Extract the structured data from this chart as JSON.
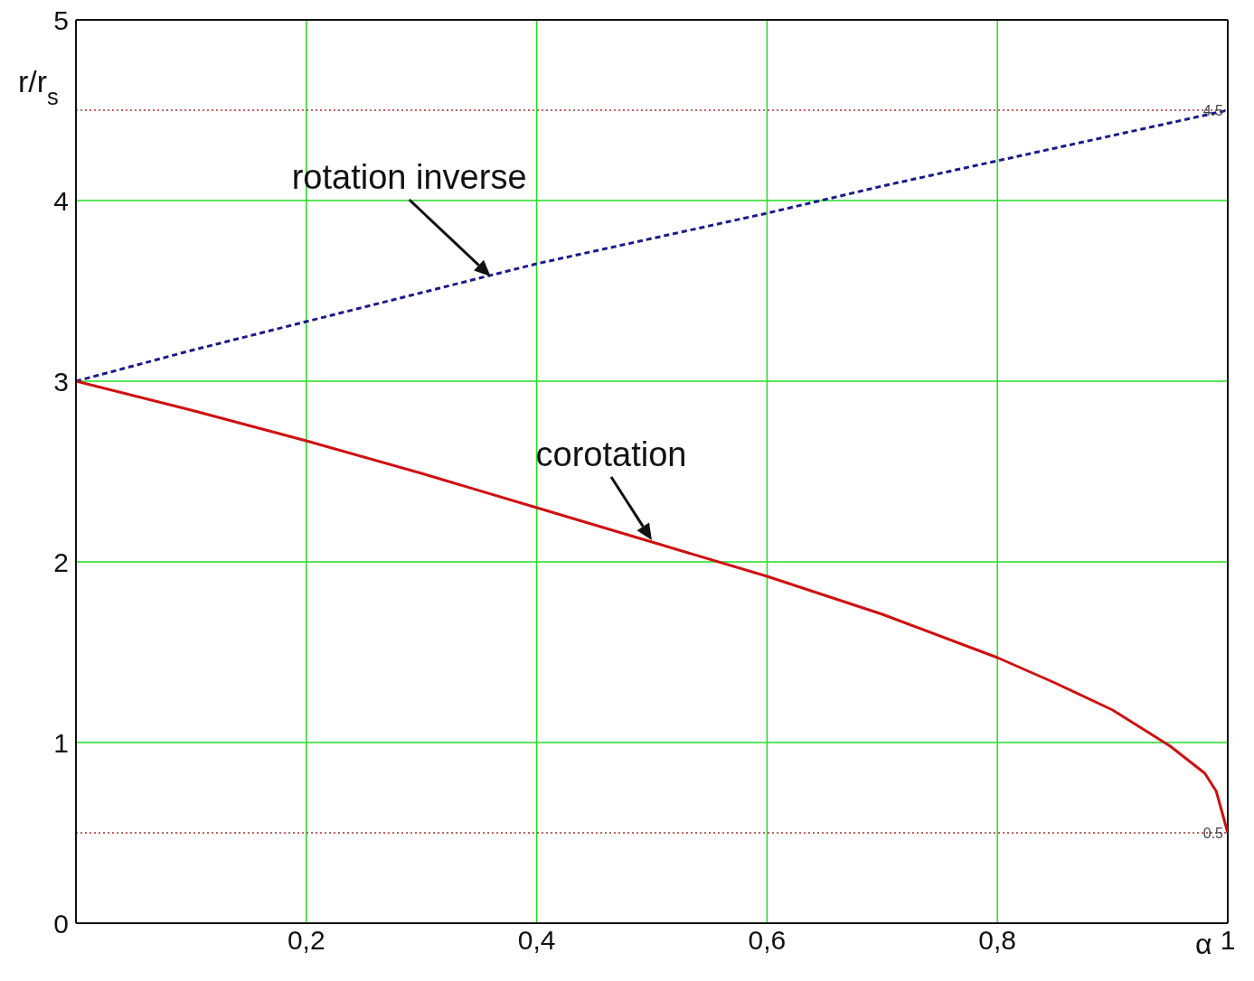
{
  "chart_data": {
    "type": "line",
    "xlabel": "α",
    "ylabel": "r/r$_{s}$",
    "series": [
      {
        "color": "#1a1a8c",
        "line_style": "dashed",
        "x": [
          0,
          0.1,
          0.2,
          0.3,
          0.4,
          0.5,
          0.6,
          0.7,
          0.8,
          0.9,
          1
        ],
        "values": [
          3,
          3.17,
          3.33,
          3.49,
          3.65,
          3.79,
          3.93,
          4.08,
          4.22,
          4.36,
          4.5
        ]
      },
      {
        "color": "#d01010",
        "line_style": "solid",
        "x": [
          0,
          0.1,
          0.2,
          0.3,
          0.4,
          0.5,
          0.6,
          0.7,
          0.8,
          0.85,
          0.9,
          0.95,
          0.98,
          0.99,
          1
        ],
        "values": [
          3,
          2.84,
          2.67,
          2.49,
          2.3,
          2.11,
          1.92,
          1.71,
          1.47,
          1.33,
          1.18,
          0.98,
          0.83,
          0.73,
          0.5
        ]
      }
    ],
    "xlim": [
      0,
      1
    ],
    "xticks": [
      {
        "value": 0.2,
        "label": "0,2"
      },
      {
        "value": 0.4,
        "label": "0,4"
      },
      {
        "value": 0.6,
        "label": "0,6"
      },
      {
        "value": 0.8,
        "label": "0,8"
      },
      1
    ],
    "ylim": [
      0,
      5
    ],
    "yticks": [
      0,
      1,
      2,
      3,
      4,
      5
    ],
    "grid": true,
    "marker": "none",
    "legend": false,
    "ref_lines": [
      {
        "axis": "y",
        "value": 4.5,
        "label": "4.5",
        "color": "#b03030",
        "line_style": "dotted"
      },
      {
        "axis": "y",
        "value": 0.5,
        "label": "0.5",
        "color": "#b03030",
        "line_style": "dotted"
      }
    ],
    "annotations": [
      {
        "text": "rotation inverse",
        "x": 0.36,
        "y": 3.58
      },
      {
        "text": "corotation",
        "x": 0.5,
        "y": 2.12
      }
    ]
  }
}
